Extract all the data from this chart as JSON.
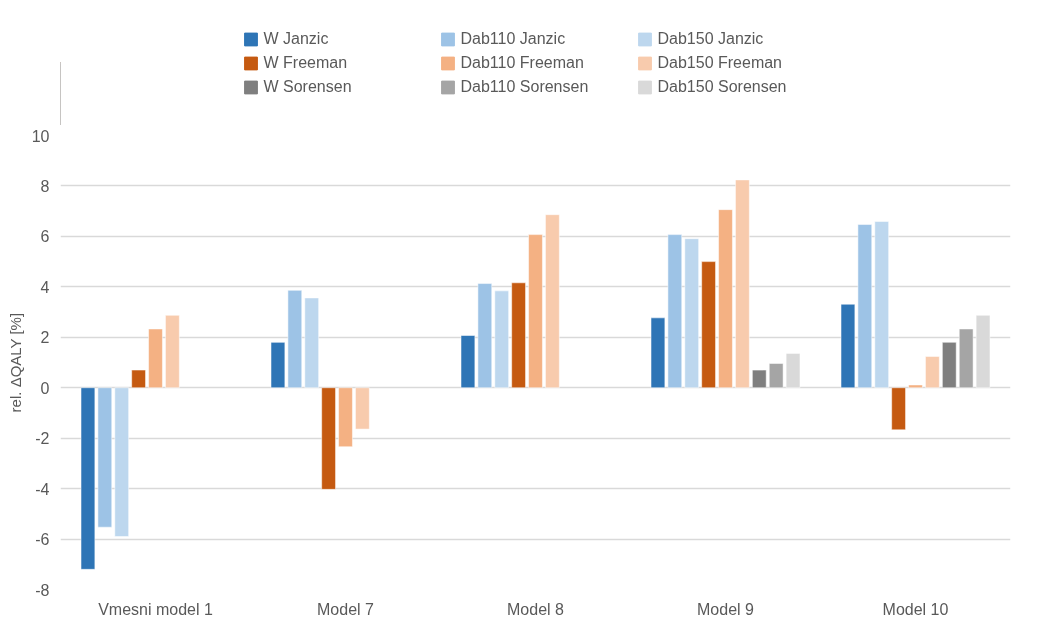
{
  "chart_data": {
    "type": "bar",
    "ylabel": "rel. ΔQALY [%]",
    "categories": [
      "Vmesni model 1",
      "Model 7",
      "Model 8",
      "Model 9",
      "Model 10"
    ],
    "series": [
      {
        "name": "W Janzic",
        "color": "#2e75b6",
        "values": [
          -7.2,
          1.8,
          2.07,
          2.77,
          3.31
        ]
      },
      {
        "name": "Dab110 Janzic",
        "color": "#9dc3e6",
        "values": [
          -5.53,
          3.86,
          4.13,
          6.07,
          6.47
        ]
      },
      {
        "name": "Dab150 Janzic",
        "color": "#bdd7ee",
        "values": [
          -5.9,
          3.56,
          3.84,
          5.91,
          6.59
        ]
      },
      {
        "name": "W Freeman",
        "color": "#c55a11",
        "values": [
          0.7,
          -4.03,
          4.16,
          5.0,
          -1.67
        ]
      },
      {
        "name": "Dab110 Freeman",
        "color": "#f4b183",
        "values": [
          2.33,
          -2.34,
          6.07,
          7.06,
          0.11
        ]
      },
      {
        "name": "Dab150 Freeman",
        "color": "#f8cbad",
        "values": [
          2.87,
          -1.64,
          6.86,
          8.24,
          1.24
        ]
      },
      {
        "name": "W Sorensen",
        "color": "#7f7f7f",
        "values": [
          null,
          null,
          null,
          0.7,
          1.8
        ]
      },
      {
        "name": "Dab110 Sorensen",
        "color": "#a5a5a5",
        "values": [
          null,
          null,
          null,
          0.96,
          2.33
        ]
      },
      {
        "name": "Dab150 Sorensen",
        "color": "#d9d9d9",
        "values": [
          null,
          null,
          null,
          1.36,
          2.87
        ]
      }
    ],
    "ylim": [
      -8,
      10
    ],
    "yticks": [
      -8,
      -6,
      -4,
      -2,
      0,
      2,
      4,
      6,
      8,
      10
    ],
    "grid": "y",
    "legend": "top"
  }
}
